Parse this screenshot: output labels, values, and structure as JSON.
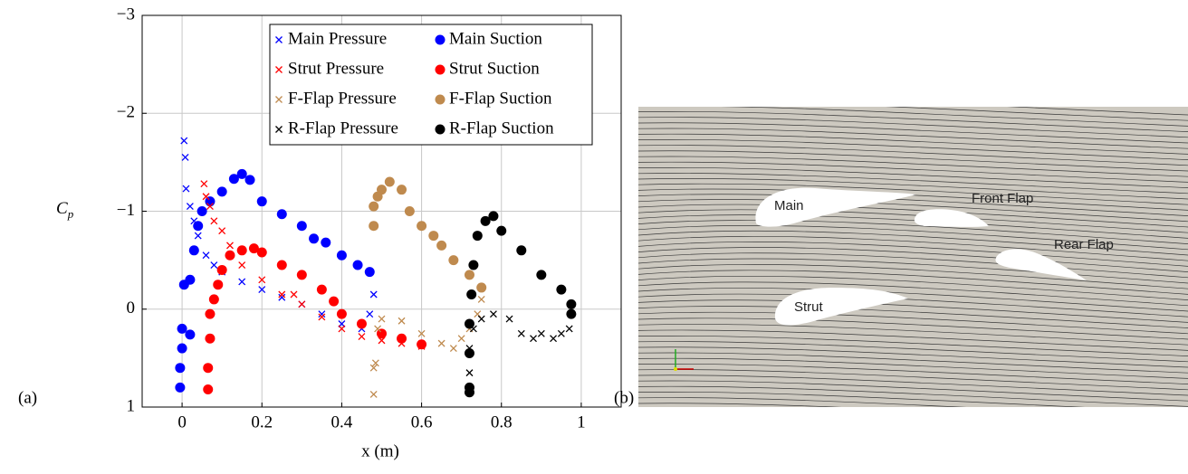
{
  "chart_data": {
    "type": "scatter",
    "x_label": "x (m)",
    "y_label": "C",
    "y_label_sub": "p",
    "xlim": [
      -0.1,
      1.1
    ],
    "xticks": [
      0,
      0.2,
      0.4,
      0.6,
      0.8,
      1
    ],
    "ylim": [
      1,
      -3
    ],
    "yticks": [
      {
        "value": 1,
        "label": "1"
      },
      {
        "value": 0,
        "label": "0"
      },
      {
        "value": -1,
        "label": "−1"
      },
      {
        "value": -2,
        "label": "−2"
      },
      {
        "value": -3,
        "label": "−3"
      }
    ],
    "grid": true,
    "legend": "upper right",
    "series": [
      {
        "name": "Main Pressure",
        "color": "#0000ff",
        "marker": "x",
        "x": [
          0.005,
          0.008,
          0.01,
          0.02,
          0.03,
          0.04,
          0.06,
          0.08,
          0.1,
          0.15,
          0.2,
          0.25,
          0.3,
          0.35,
          0.4,
          0.45,
          0.47,
          0.48
        ],
        "values": [
          -1.72,
          -1.55,
          -1.23,
          -1.05,
          -0.9,
          -0.75,
          -0.55,
          -0.45,
          -0.38,
          -0.28,
          -0.2,
          -0.12,
          -0.05,
          0.05,
          0.15,
          0.2,
          0.05,
          -0.15
        ]
      },
      {
        "name": "Main Suction",
        "color": "#0000ff",
        "marker": "o",
        "x": [
          -0.005,
          -0.005,
          0,
          0,
          0.005,
          0.02,
          0.02,
          0.03,
          0.04,
          0.05,
          0.07,
          0.1,
          0.13,
          0.15,
          0.17,
          0.2,
          0.25,
          0.3,
          0.33,
          0.36,
          0.4,
          0.44,
          0.47
        ],
        "values": [
          0.8,
          0.6,
          0.4,
          0.2,
          -0.25,
          0.26,
          -0.3,
          -0.6,
          -0.85,
          -1.0,
          -1.1,
          -1.2,
          -1.33,
          -1.38,
          -1.32,
          -1.1,
          -0.97,
          -0.85,
          -0.72,
          -0.68,
          -0.55,
          -0.45,
          -0.38
        ]
      },
      {
        "name": "Strut Pressure",
        "color": "#ff0000",
        "marker": "x",
        "x": [
          0.055,
          0.06,
          0.07,
          0.08,
          0.1,
          0.12,
          0.15,
          0.2,
          0.25,
          0.28,
          0.3,
          0.35,
          0.4,
          0.45,
          0.5,
          0.55,
          0.6
        ],
        "values": [
          -1.28,
          -1.15,
          -1.05,
          -0.9,
          -0.8,
          -0.65,
          -0.45,
          -0.3,
          -0.15,
          -0.15,
          -0.05,
          0.08,
          0.2,
          0.28,
          0.32,
          0.35,
          0.38
        ]
      },
      {
        "name": "Strut Suction",
        "color": "#ff0000",
        "marker": "o",
        "x": [
          0.065,
          0.065,
          0.07,
          0.07,
          0.08,
          0.09,
          0.1,
          0.12,
          0.15,
          0.18,
          0.2,
          0.25,
          0.3,
          0.35,
          0.38,
          0.4,
          0.45,
          0.5,
          0.55,
          0.6
        ],
        "values": [
          0.82,
          0.6,
          0.3,
          0.05,
          -0.1,
          -0.25,
          -0.4,
          -0.55,
          -0.6,
          -0.62,
          -0.58,
          -0.45,
          -0.35,
          -0.2,
          -0.08,
          0.05,
          0.15,
          0.25,
          0.3,
          0.36
        ]
      },
      {
        "name": "F-Flap Pressure",
        "color": "#bf8a4e",
        "marker": "x",
        "x": [
          0.48,
          0.48,
          0.485,
          0.49,
          0.5,
          0.55,
          0.6,
          0.65,
          0.68,
          0.7,
          0.72,
          0.74,
          0.75
        ],
        "values": [
          0.87,
          0.6,
          0.55,
          0.2,
          0.1,
          0.12,
          0.25,
          0.35,
          0.4,
          0.3,
          0.2,
          0.05,
          -0.1
        ]
      },
      {
        "name": "F-Flap Suction",
        "color": "#bf8a4e",
        "marker": "o",
        "x": [
          0.48,
          0.48,
          0.49,
          0.5,
          0.52,
          0.55,
          0.57,
          0.6,
          0.63,
          0.65,
          0.68,
          0.72,
          0.75
        ],
        "values": [
          -0.85,
          -1.05,
          -1.15,
          -1.22,
          -1.3,
          -1.22,
          -1.0,
          -0.85,
          -0.75,
          -0.65,
          -0.5,
          -0.35,
          -0.22
        ]
      },
      {
        "name": "R-Flap Pressure",
        "color": "#000000",
        "marker": "x",
        "x": [
          0.72,
          0.72,
          0.73,
          0.75,
          0.78,
          0.82,
          0.85,
          0.88,
          0.9,
          0.93,
          0.95,
          0.97
        ],
        "values": [
          0.65,
          0.4,
          0.2,
          0.1,
          0.05,
          0.1,
          0.25,
          0.3,
          0.25,
          0.3,
          0.25,
          0.2
        ]
      },
      {
        "name": "R-Flap Suction",
        "color": "#000000",
        "marker": "o",
        "x": [
          0.72,
          0.72,
          0.72,
          0.72,
          0.725,
          0.73,
          0.74,
          0.76,
          0.78,
          0.8,
          0.85,
          0.9,
          0.95,
          0.975,
          0.975
        ],
        "values": [
          0.85,
          0.8,
          0.45,
          0.15,
          -0.15,
          -0.45,
          -0.75,
          -0.9,
          -0.95,
          -0.8,
          -0.6,
          -0.35,
          -0.2,
          -0.05,
          0.05
        ]
      }
    ]
  },
  "panel_labels": [
    "(a)",
    "(b)"
  ],
  "flow_image": {
    "labels": [
      "Main",
      "Front Flap",
      "Rear Flap",
      "Strut"
    ]
  }
}
